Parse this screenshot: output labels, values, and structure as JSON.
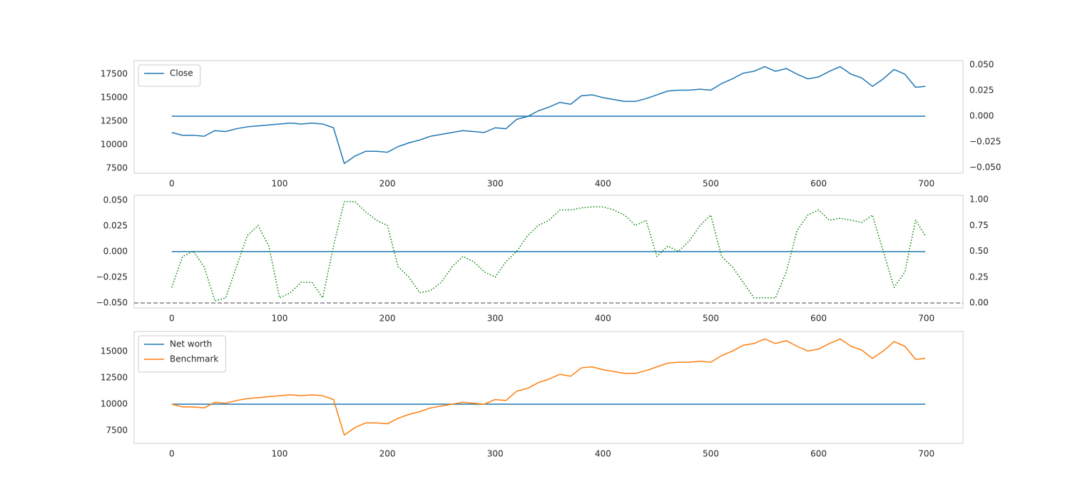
{
  "chart_data": [
    {
      "type": "line",
      "legend": "upper left",
      "grid": false,
      "xlim": [
        -34.95,
        733.95
      ],
      "xticks": [
        0,
        100,
        200,
        300,
        400,
        500,
        600,
        700
      ],
      "ylim": [
        6970,
        18940
      ],
      "yticks": [
        7500,
        10000,
        12500,
        15000,
        17500
      ],
      "y2lim": [
        -0.0556,
        0.0542
      ],
      "y2ticks": [
        {
          "value": -0.05,
          "label": "−0.050"
        },
        {
          "value": -0.025,
          "label": "−0.025"
        },
        {
          "value": 0,
          "label": "0.000"
        },
        {
          "value": 0.025,
          "label": "0.025"
        },
        {
          "value": 0.05,
          "label": "0.050"
        }
      ],
      "x": [
        0,
        10,
        20,
        30,
        40,
        50,
        60,
        70,
        80,
        90,
        100,
        110,
        120,
        130,
        140,
        150,
        160,
        170,
        180,
        190,
        200,
        210,
        220,
        230,
        240,
        250,
        260,
        270,
        280,
        290,
        300,
        310,
        320,
        330,
        340,
        350,
        360,
        370,
        380,
        390,
        400,
        410,
        420,
        430,
        440,
        450,
        460,
        470,
        480,
        490,
        500,
        510,
        520,
        530,
        540,
        550,
        560,
        570,
        580,
        590,
        600,
        610,
        620,
        630,
        640,
        650,
        660,
        670,
        680,
        690,
        699
      ],
      "series": [
        {
          "name": "Close",
          "color": "#1f77b4",
          "linestyle": "solid",
          "values": [
            11300,
            11000,
            11000,
            10900,
            11500,
            11400,
            11700,
            11900,
            12000,
            12100,
            12200,
            12300,
            12200,
            12300,
            12200,
            11800,
            8000,
            8800,
            9300,
            9300,
            9200,
            9800,
            10200,
            10500,
            10900,
            11100,
            11300,
            11500,
            11400,
            11300,
            11800,
            11700,
            12700,
            13000,
            13600,
            14000,
            14500,
            14300,
            15200,
            15300,
            15000,
            14800,
            14600,
            14600,
            14900,
            15300,
            15700,
            15800,
            15800,
            15900,
            15800,
            16500,
            17000,
            17600,
            17800,
            18300,
            17800,
            18100,
            17500,
            17000,
            17200,
            17800,
            18300,
            17500,
            17100,
            16200,
            17000,
            18000,
            17500,
            16100,
            16200
          ]
        },
        {
          "color": "#1f77b4",
          "linestyle": "solid",
          "axis": "y2",
          "x": [
            0,
            699
          ],
          "values": [
            0,
            0
          ]
        }
      ]
    },
    {
      "type": "line",
      "grid": false,
      "xlim": [
        -34.95,
        733.95
      ],
      "xticks": [
        0,
        100,
        200,
        300,
        400,
        500,
        600,
        700
      ],
      "ylim": [
        -0.0549,
        0.0549
      ],
      "yticks": [
        {
          "value": -0.05,
          "label": "−0.050"
        },
        {
          "value": -0.025,
          "label": "−0.025"
        },
        {
          "value": 0,
          "label": "0.000"
        },
        {
          "value": 0.025,
          "label": "0.025"
        },
        {
          "value": 0.05,
          "label": "0.050"
        }
      ],
      "y2lim": [
        -0.048,
        1.0414
      ],
      "y2ticks": [
        {
          "value": 0,
          "label": "0.00"
        },
        {
          "value": 0.25,
          "label": "0.25"
        },
        {
          "value": 0.5,
          "label": "0.50"
        },
        {
          "value": 0.75,
          "label": "0.75"
        },
        {
          "value": 1,
          "label": "1.00"
        }
      ],
      "x": [
        0,
        10,
        20,
        30,
        40,
        50,
        60,
        70,
        80,
        90,
        100,
        110,
        120,
        130,
        140,
        150,
        160,
        170,
        180,
        190,
        200,
        210,
        220,
        230,
        240,
        250,
        260,
        270,
        280,
        290,
        300,
        310,
        320,
        330,
        340,
        350,
        360,
        370,
        380,
        390,
        400,
        410,
        420,
        430,
        440,
        450,
        460,
        470,
        480,
        490,
        500,
        510,
        520,
        530,
        540,
        550,
        560,
        570,
        580,
        590,
        600,
        610,
        620,
        630,
        640,
        650,
        660,
        670,
        680,
        690,
        699
      ],
      "hlines": [
        {
          "value": 0,
          "axis": "y2",
          "color": "#808080",
          "linestyle": "dashed"
        }
      ],
      "series": [
        {
          "color": "#1f77b4",
          "linestyle": "solid",
          "x": [
            0,
            699
          ],
          "values": [
            0,
            0
          ]
        },
        {
          "color": "#008000",
          "linestyle": "dotted",
          "axis": "y2",
          "values": [
            0.15,
            0.45,
            0.5,
            0.35,
            0.02,
            0.05,
            0.35,
            0.65,
            0.75,
            0.55,
            0.05,
            0.1,
            0.2,
            0.2,
            0.05,
            0.55,
            0.98,
            0.98,
            0.88,
            0.8,
            0.75,
            0.35,
            0.25,
            0.1,
            0.12,
            0.2,
            0.35,
            0.45,
            0.4,
            0.3,
            0.25,
            0.4,
            0.5,
            0.65,
            0.75,
            0.8,
            0.9,
            0.9,
            0.92,
            0.93,
            0.93,
            0.9,
            0.85,
            0.75,
            0.8,
            0.45,
            0.55,
            0.5,
            0.6,
            0.75,
            0.85,
            0.45,
            0.35,
            0.2,
            0.05,
            0.05,
            0.05,
            0.3,
            0.7,
            0.85,
            0.9,
            0.8,
            0.82,
            0.8,
            0.78,
            0.85,
            0.5,
            0.15,
            0.3,
            0.8,
            0.65
          ]
        }
      ]
    },
    {
      "type": "line",
      "legend": "upper left",
      "grid": false,
      "xlim": [
        -34.95,
        733.95
      ],
      "xticks": [
        0,
        100,
        200,
        300,
        400,
        500,
        600,
        700
      ],
      "ylim": [
        6284,
        16892
      ],
      "yticks": [
        7500,
        10000,
        12500,
        15000
      ],
      "x": [
        0,
        10,
        20,
        30,
        40,
        50,
        60,
        70,
        80,
        90,
        100,
        110,
        120,
        130,
        140,
        150,
        160,
        170,
        180,
        190,
        200,
        210,
        220,
        230,
        240,
        250,
        260,
        270,
        280,
        290,
        300,
        310,
        320,
        330,
        340,
        350,
        360,
        370,
        380,
        390,
        400,
        410,
        420,
        430,
        440,
        450,
        460,
        470,
        480,
        490,
        500,
        510,
        520,
        530,
        540,
        550,
        560,
        570,
        580,
        590,
        600,
        610,
        620,
        630,
        640,
        650,
        660,
        670,
        680,
        690,
        699
      ],
      "series": [
        {
          "name": "Net worth",
          "color": "#1f77b4",
          "linestyle": "solid",
          "x": [
            0,
            699
          ],
          "values": [
            10000,
            10000
          ]
        },
        {
          "name": "Benchmark",
          "color": "#ff7f0e",
          "linestyle": "solid",
          "values": [
            10000,
            9740,
            9740,
            9650,
            10180,
            10090,
            10350,
            10530,
            10620,
            10710,
            10800,
            10890,
            10800,
            10890,
            10800,
            10440,
            7080,
            7790,
            8230,
            8230,
            8140,
            8670,
            9030,
            9290,
            9650,
            9820,
            10000,
            10180,
            10090,
            10000,
            10440,
            10350,
            11240,
            11500,
            12040,
            12390,
            12830,
            12650,
            13450,
            13540,
            13270,
            13100,
            12920,
            12920,
            13190,
            13540,
            13890,
            13980,
            13980,
            14070,
            13980,
            14600,
            15040,
            15580,
            15750,
            16190,
            15750,
            16020,
            15490,
            15040,
            15220,
            15750,
            16190,
            15490,
            15130,
            14340,
            15040,
            15930,
            15490,
            14250,
            14340
          ]
        }
      ]
    }
  ]
}
